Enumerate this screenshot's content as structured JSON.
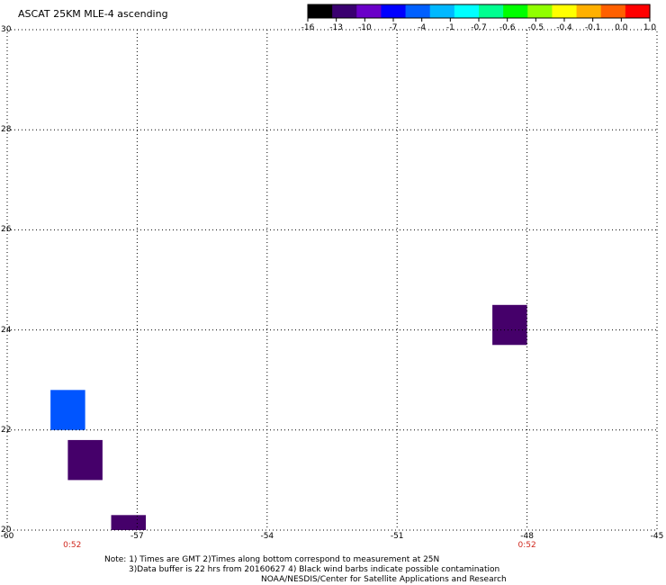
{
  "title": "ASCAT 25KM MLE-4 ascending",
  "colorbar": {
    "colors": [
      "#000000",
      "#3a0070",
      "#6a00c8",
      "#0000ff",
      "#0060ff",
      "#00b8ff",
      "#00ffff",
      "#00ff90",
      "#00ff00",
      "#90ff00",
      "#ffff00",
      "#ffb000",
      "#ff6000",
      "#ff0000"
    ],
    "ticks": [
      "-16",
      "-13",
      "-10",
      "-7",
      "-4",
      "-1",
      "-0.7",
      "-0.6",
      "-0.5",
      "-0.4",
      "-0.1",
      "0.0",
      "1.0"
    ]
  },
  "axes": {
    "x_ticks": [
      "-60",
      "-57",
      "-54",
      "-51",
      "-48",
      "-45"
    ],
    "x_values": [
      -60,
      -57,
      -54,
      -51,
      -48,
      -45
    ],
    "y_ticks": [
      "30",
      "28",
      "26",
      "24",
      "22",
      "20"
    ],
    "y_values": [
      30,
      28,
      26,
      24,
      22,
      20
    ],
    "lon_range": [
      -60,
      -45
    ],
    "lat_range": [
      20,
      30
    ],
    "grid": true
  },
  "time_labels": [
    {
      "lon": -58.5,
      "text": "0:52"
    },
    {
      "lon": -48.0,
      "text": "0:52"
    }
  ],
  "cells": [
    {
      "lon_min": -48.8,
      "lon_max": -48.0,
      "lat_min": 23.7,
      "lat_max": 24.5,
      "color": "#45006a"
    },
    {
      "lon_min": -59.0,
      "lon_max": -58.2,
      "lat_min": 22.0,
      "lat_max": 22.8,
      "color": "#0055ff"
    },
    {
      "lon_min": -58.6,
      "lon_max": -57.8,
      "lat_min": 21.0,
      "lat_max": 21.8,
      "color": "#45006a"
    },
    {
      "lon_min": -57.6,
      "lon_max": -56.8,
      "lat_min": 20.0,
      "lat_max": 20.3,
      "color": "#45006a"
    }
  ],
  "notes": {
    "line1": "Note: 1) Times are GMT 2)Times along bottom correspond to measurement at 25N",
    "line2": "3)Data buffer is 22 hrs from 20160627 4) Black wind barbs indicate possible contamination",
    "line3": "NOAA/NESDIS/Center for Satellite Applications and Research"
  }
}
